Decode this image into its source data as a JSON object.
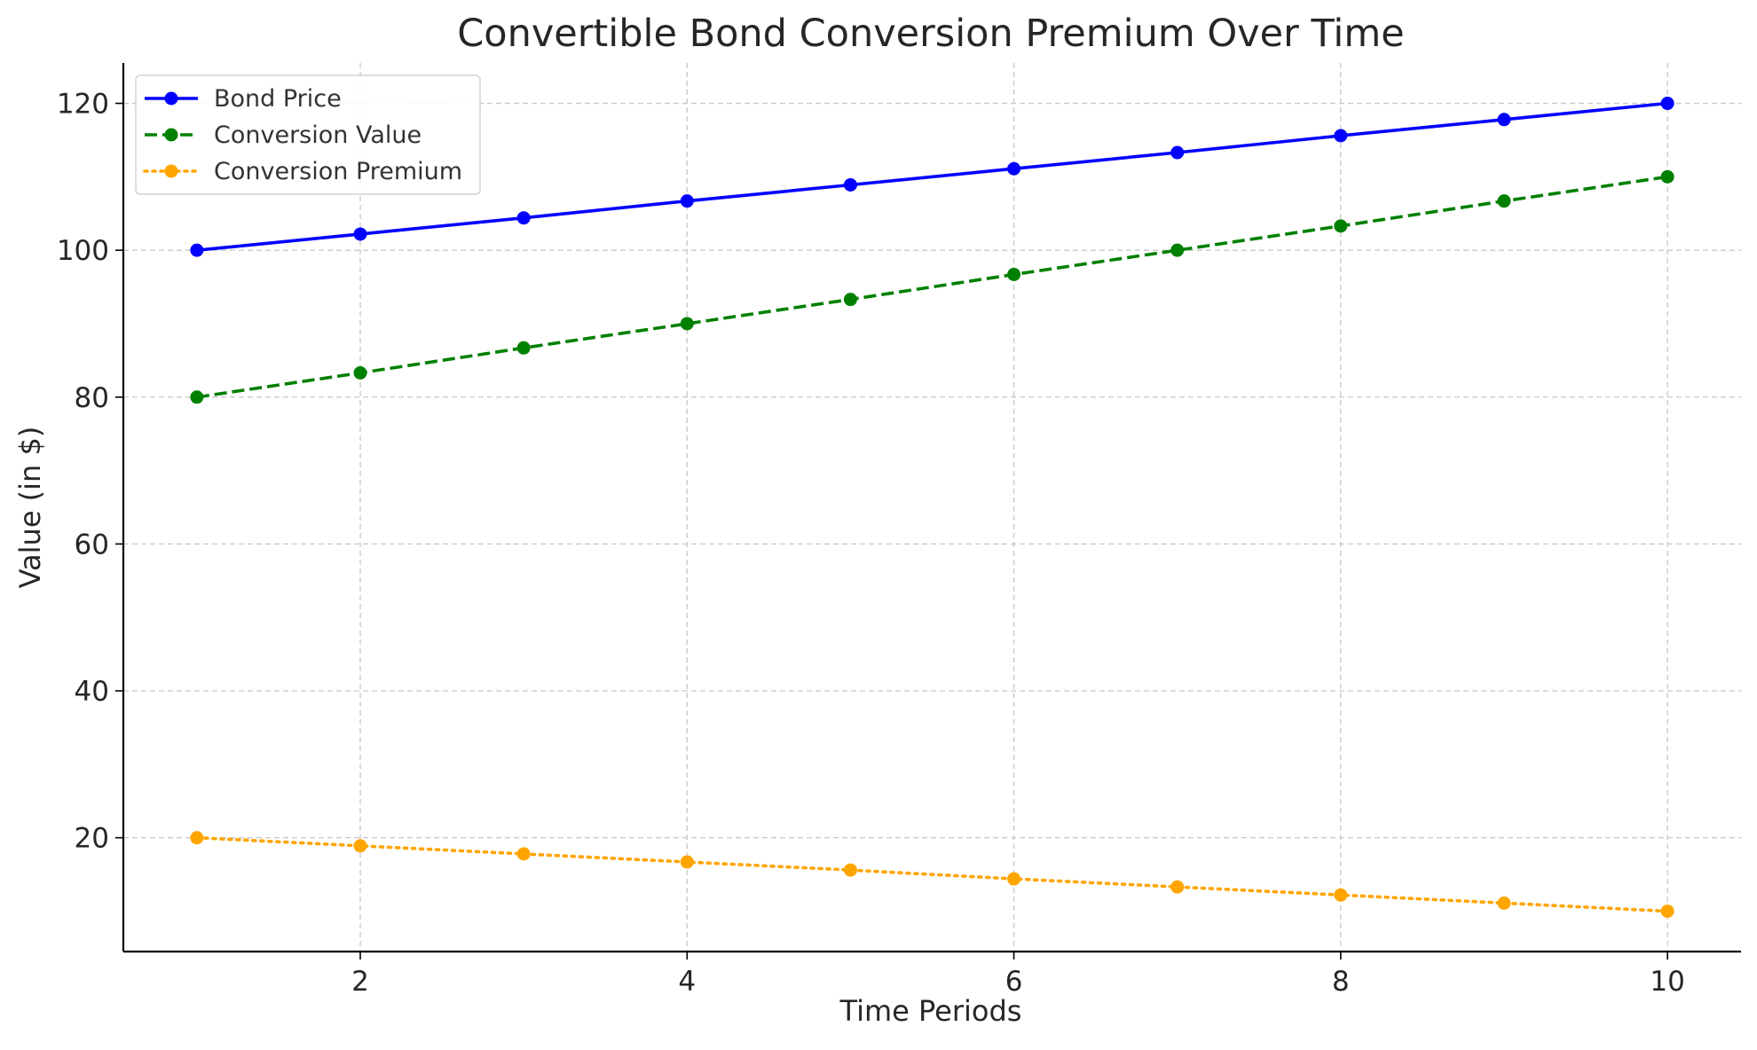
{
  "chart_data": {
    "type": "line",
    "title": "Convertible Bond Conversion Premium Over Time",
    "xlabel": "Time Periods",
    "ylabel": "Value (in $)",
    "x": [
      1,
      2,
      3,
      4,
      5,
      6,
      7,
      8,
      9,
      10
    ],
    "xlim": [
      0.55,
      10.45
    ],
    "ylim": [
      4.5,
      125.5
    ],
    "xticks": [
      2,
      4,
      6,
      8,
      10
    ],
    "yticks": [
      20,
      40,
      60,
      80,
      100,
      120
    ],
    "grid": true,
    "legend_position": "top-left",
    "series": [
      {
        "name": "Bond Price",
        "color": "#0000ff",
        "line_style": "solid",
        "marker": "circle",
        "values": [
          100.0,
          102.2,
          104.4,
          106.7,
          108.9,
          111.1,
          113.3,
          115.6,
          117.8,
          120.0
        ]
      },
      {
        "name": "Conversion Value",
        "color": "#008000",
        "line_style": "dashed",
        "marker": "circle",
        "values": [
          80.0,
          83.3,
          86.7,
          90.0,
          93.3,
          96.7,
          100.0,
          103.3,
          106.7,
          110.0
        ]
      },
      {
        "name": "Conversion Premium",
        "color": "#ffa500",
        "line_style": "dotted",
        "marker": "circle",
        "values": [
          20.0,
          18.9,
          17.8,
          16.7,
          15.6,
          14.4,
          13.3,
          12.2,
          11.1,
          10.0
        ]
      }
    ]
  }
}
